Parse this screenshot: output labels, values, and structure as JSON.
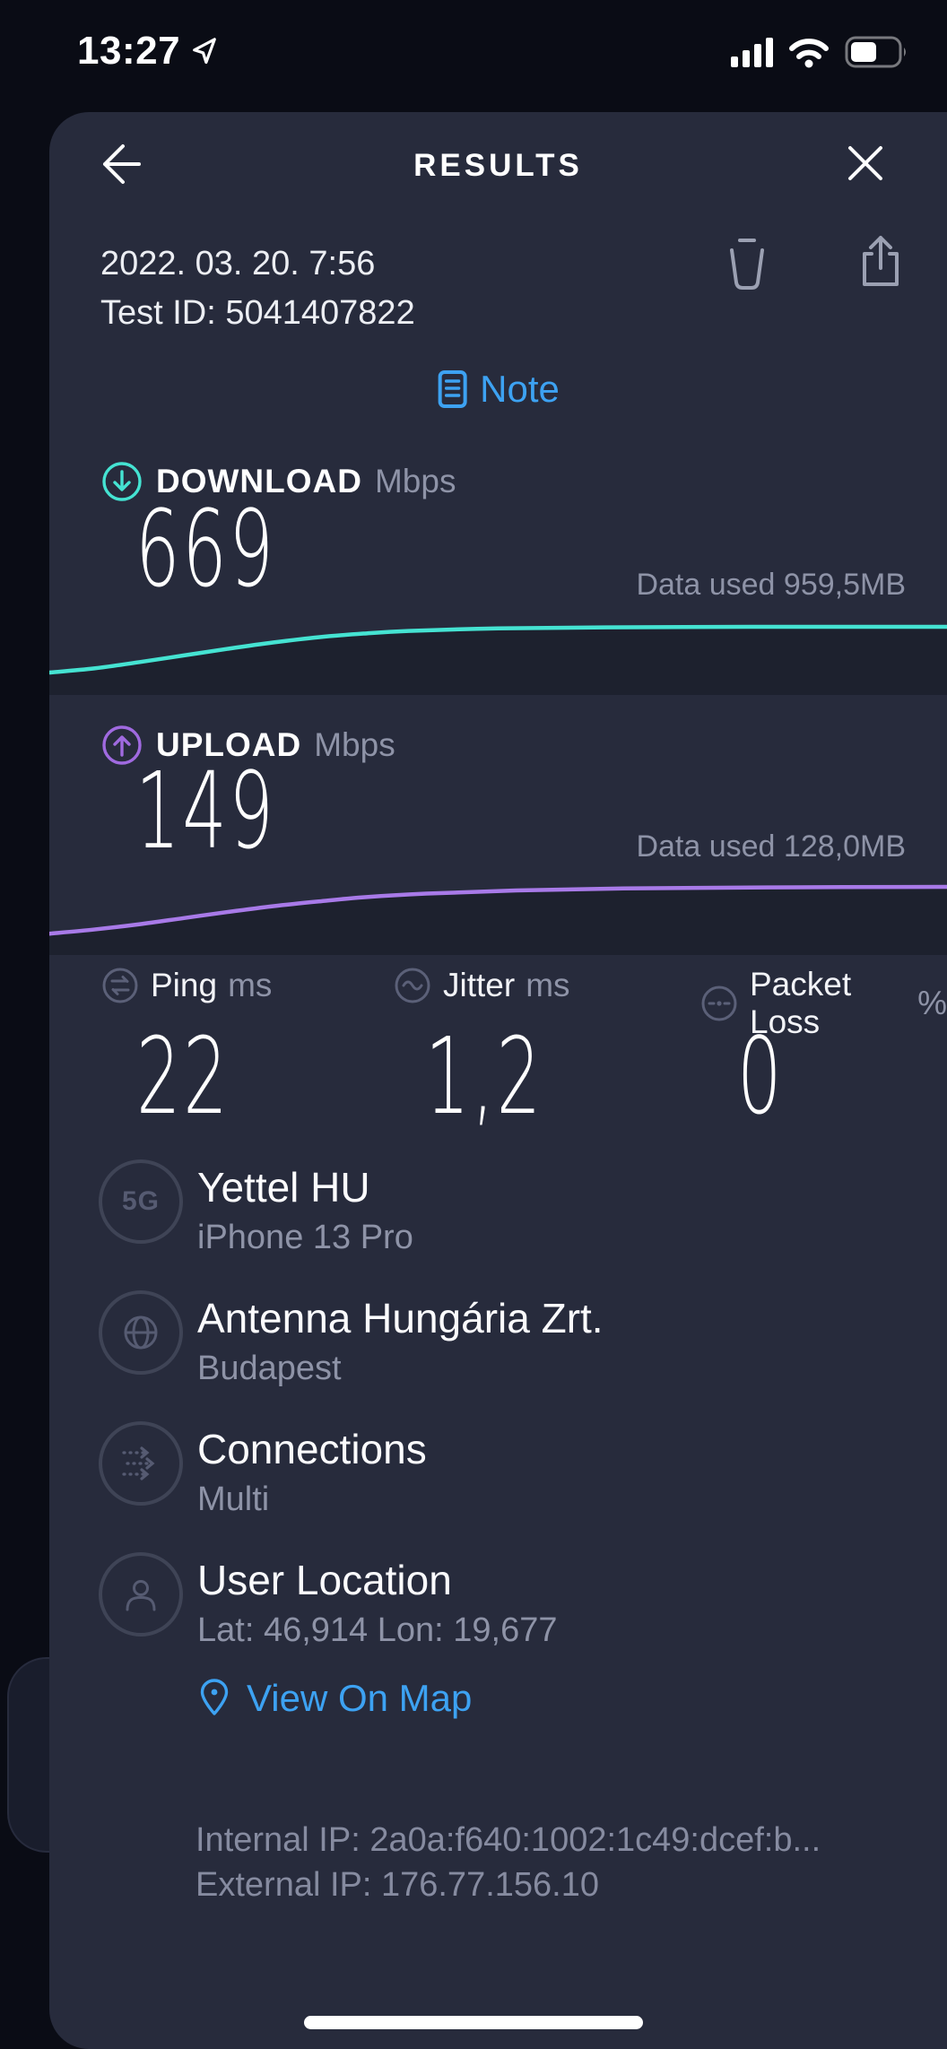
{
  "status_bar": {
    "time": "13:27"
  },
  "header": {
    "title": "RESULTS"
  },
  "meta": {
    "date": "2022. 03. 20. 7:56",
    "test_id": "Test ID: 5041407822"
  },
  "note_button": {
    "label": "Note"
  },
  "download": {
    "label": "DOWNLOAD",
    "unit": "Mbps",
    "value": "669",
    "data_used": "Data used 959,5MB"
  },
  "upload": {
    "label": "UPLOAD",
    "unit": "Mbps",
    "value": "149",
    "data_used": "Data used 128,0MB"
  },
  "metrics": [
    {
      "label": "Ping",
      "unit": "ms",
      "value": "22"
    },
    {
      "label": "Jitter",
      "unit": "ms",
      "value": "1,2"
    },
    {
      "label": "Packet Loss",
      "unit": "%",
      "value": "0"
    }
  ],
  "connection_info": [
    {
      "icon": "5g-badge-icon",
      "icon_label": "5G",
      "title": "Yettel HU",
      "subtitle": "iPhone 13 Pro"
    },
    {
      "icon": "globe-icon",
      "title": "Antenna Hungária Zrt.",
      "subtitle": "Budapest"
    },
    {
      "icon": "multi-connections-icon",
      "title": "Connections",
      "subtitle": "Multi"
    },
    {
      "icon": "user-icon",
      "title": "User Location",
      "subtitle": "Lat: 46,914  Lon: 19,677"
    }
  ],
  "map_link": {
    "label": "View On Map"
  },
  "ip_info": {
    "internal": "Internal IP: 2a0a:f640:1002:1c49:dcef:b...",
    "external": "External IP: 176.77.156.10"
  },
  "colors": {
    "background": "#0a0c15",
    "sheet": "#272b3c",
    "teal": "#45e3d2",
    "purple": "#a87ae8",
    "blue": "#3da2f2",
    "gray_text": "#8e93a7"
  },
  "chart_data": [
    {
      "type": "line",
      "name": "download-speed-over-time",
      "unit": "Mbps",
      "final_value": 669,
      "data_used_mb": "959,5",
      "color": "#45e3d2",
      "points": [
        [
          0,
          0.12
        ],
        [
          0.05,
          0.2
        ],
        [
          0.1,
          0.32
        ],
        [
          0.15,
          0.45
        ],
        [
          0.2,
          0.58
        ],
        [
          0.25,
          0.7
        ],
        [
          0.3,
          0.8
        ],
        [
          0.35,
          0.87
        ],
        [
          0.4,
          0.92
        ],
        [
          0.5,
          0.97
        ],
        [
          0.62,
          0.99
        ],
        [
          0.78,
          1
        ],
        [
          1,
          1
        ]
      ]
    },
    {
      "type": "line",
      "name": "upload-speed-over-time",
      "unit": "Mbps",
      "final_value": 149,
      "data_used_mb": "128,0",
      "color": "#a87ae8",
      "points": [
        [
          0,
          0.1
        ],
        [
          0.05,
          0.18
        ],
        [
          0.1,
          0.28
        ],
        [
          0.15,
          0.4
        ],
        [
          0.2,
          0.52
        ],
        [
          0.25,
          0.63
        ],
        [
          0.3,
          0.72
        ],
        [
          0.35,
          0.8
        ],
        [
          0.42,
          0.87
        ],
        [
          0.52,
          0.93
        ],
        [
          0.64,
          0.97
        ],
        [
          0.8,
          0.99
        ],
        [
          1,
          1
        ]
      ]
    }
  ]
}
